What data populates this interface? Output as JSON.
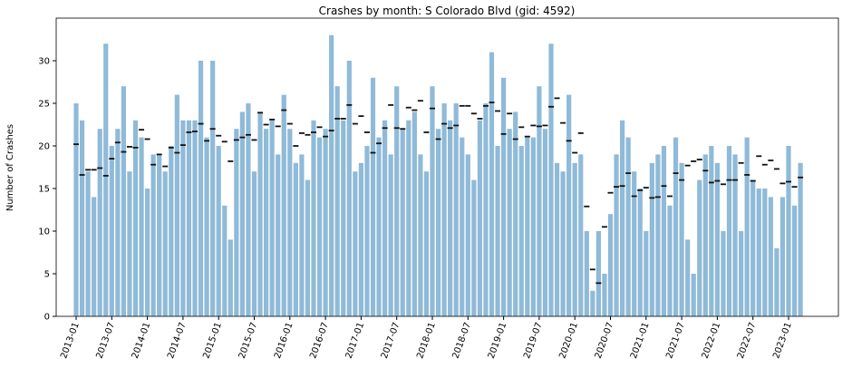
{
  "chart_data": {
    "type": "bar",
    "title": "Crashes by month: S Colorado Blvd (gid: 4592)",
    "y_label": "Number of Crashes",
    "color": "#8fbad8",
    "marker_color": "#111111",
    "ylim": [
      0,
      35
    ],
    "yticks": [
      0,
      5,
      10,
      15,
      20,
      25,
      30
    ],
    "categories": [
      "2013-01",
      null,
      null,
      null,
      null,
      null,
      "2013-07",
      null,
      null,
      null,
      null,
      null,
      "2014-01",
      null,
      null,
      null,
      null,
      null,
      "2014-07",
      null,
      null,
      null,
      null,
      null,
      "2015-01",
      null,
      null,
      null,
      null,
      null,
      "2015-07",
      null,
      null,
      null,
      null,
      null,
      "2016-01",
      null,
      null,
      null,
      null,
      null,
      "2016-07",
      null,
      null,
      null,
      null,
      null,
      "2017-01",
      null,
      null,
      null,
      null,
      null,
      "2017-07",
      null,
      null,
      null,
      null,
      null,
      "2018-01",
      null,
      null,
      null,
      null,
      null,
      "2018-07",
      null,
      null,
      null,
      null,
      null,
      "2019-01",
      null,
      null,
      null,
      null,
      null,
      "2019-07",
      null,
      null,
      null,
      null,
      null,
      "2020-01",
      null,
      null,
      null,
      null,
      null,
      "2020-07",
      null,
      null,
      null,
      null,
      null,
      "2021-01",
      null,
      null,
      null,
      null,
      null,
      "2021-07",
      null,
      null,
      null,
      null,
      null,
      "2022-01",
      null,
      null,
      null,
      null,
      null,
      "2022-07",
      null,
      null,
      null,
      null,
      null,
      "2023-01",
      null,
      null
    ],
    "values": [
      25,
      23,
      17,
      14,
      22,
      32,
      20,
      22,
      27,
      17,
      23,
      21,
      15,
      19,
      19,
      17,
      20,
      26,
      23,
      23,
      23,
      30,
      21,
      30,
      20,
      13,
      9,
      22,
      24,
      25,
      17,
      24,
      22,
      23,
      19,
      26,
      22,
      18,
      19,
      16,
      23,
      21,
      22,
      33,
      27,
      23,
      30,
      17,
      18,
      20,
      28,
      21,
      23,
      19,
      27,
      22,
      23,
      24,
      19,
      17,
      27,
      22,
      25,
      23,
      25,
      21,
      19,
      16,
      23,
      25,
      31,
      20,
      28,
      22,
      24,
      20,
      21,
      21,
      27,
      22,
      32,
      18,
      17,
      26,
      18,
      19,
      10,
      3,
      10,
      5,
      12,
      19,
      23,
      21,
      17,
      15,
      10,
      18,
      19,
      20,
      13,
      21,
      18,
      9,
      5,
      16,
      19,
      20,
      18,
      10,
      20,
      19,
      10,
      21,
      16,
      15,
      15,
      14,
      8,
      14,
      20,
      13,
      18
    ],
    "marker_values": [
      20.2,
      16.6,
      17.2,
      17.2,
      17.4,
      16.5,
      18.5,
      20.4,
      19.3,
      19.9,
      19.8,
      21.9,
      20.8,
      17.8,
      19,
      17.6,
      19.8,
      19.2,
      20.1,
      21.6,
      21.7,
      22.6,
      20.6,
      22,
      21.2,
      20.5,
      18.2,
      20.7,
      21,
      21.3,
      20.7,
      23.9,
      22.5,
      23.1,
      22.3,
      24.2,
      22.6,
      20,
      21.5,
      21.3,
      21.6,
      22.2,
      21.1,
      21.8,
      23.2,
      23.2,
      24.8,
      22.6,
      23.5,
      21.6,
      19.2,
      20.3,
      22.1,
      24.8,
      22.1,
      22,
      24.5,
      24.2,
      25.3,
      21.6,
      24.4,
      20.8,
      22.6,
      22.1,
      22.4,
      24.7,
      24.7,
      23.8,
      23.2,
      24.7,
      25.1,
      24.1,
      21.4,
      23.8,
      20.8,
      22.2,
      21.1,
      22.4,
      22.3,
      22.4,
      24.6,
      25.6,
      22.7,
      20.6,
      19.2,
      21.5,
      12.9,
      5.5,
      3.9,
      10.5,
      14.5,
      15.2,
      15.3,
      16.8,
      14.1,
      14.8,
      15.1,
      13.9,
      14,
      15.3,
      14.1,
      16.8,
      16,
      17.7,
      18.2,
      18.4,
      17.1,
      15.7,
      15.9,
      15.5,
      16,
      16,
      18,
      16.6,
      15.9,
      18.8,
      17.8,
      18.3,
      17.3,
      15.6,
      15.8,
      15.2,
      16.3
    ]
  }
}
